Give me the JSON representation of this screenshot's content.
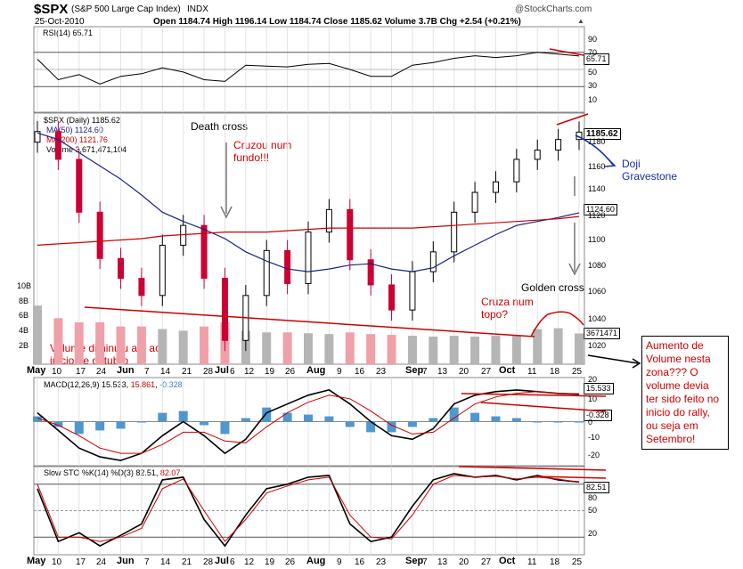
{
  "header": {
    "symbol": "$SPX",
    "name": "(S&P 500 Large Cap Index)",
    "exchange": "INDX",
    "date": "25-Oct-2010",
    "stats": "Open 1184.74  High 1196.14  Low 1184.74  Close 1185.62  Volume 3.7B  Chg +2.54 (+0.21%)",
    "stats_arrow": "▲",
    "logo": "@StockCharts.com"
  },
  "rsi": {
    "label": "RSI(14) 65.71",
    "last_badge": "65.71",
    "ticks": [
      "90",
      "70",
      "50",
      "30",
      "10"
    ]
  },
  "price": {
    "legend": {
      "main": "$SPX (Daily) 1185.62",
      "ma50": "MA(50) 1124.60",
      "ma200": "MA(200) 1121.76",
      "volume": "Volume 3,671,471,104"
    },
    "price_badge": "1185.62",
    "ma_badge": "1124.60",
    "vol_badge": "3671471",
    "ticks": [
      "1180",
      "1160",
      "1140",
      "1120",
      "1100",
      "1080",
      "1060",
      "1040",
      "1020"
    ],
    "vol_ticks": [
      "10B",
      "8B",
      "6B",
      "4B",
      "2B"
    ]
  },
  "macd": {
    "label_prefix": "MACD(12,26,9)",
    "v1": "15.533",
    "v2": "15.861",
    "v3": "-0.328",
    "badge1": "15.533",
    "badge2": "-0.328",
    "ticks": [
      "20",
      "10",
      "0",
      "-10",
      "-20"
    ]
  },
  "sto": {
    "label_prefix": "Slow STO %K(14) %D(3)",
    "k": "82.51",
    "d": "82.07",
    "badge": "82.51",
    "ticks": [
      "80",
      "50",
      "20"
    ]
  },
  "x_axis": [
    "May",
    "10",
    "17",
    "24",
    "Jun",
    "7",
    "14",
    "21",
    "28",
    "Jul",
    "6",
    "12",
    "19",
    "26",
    "Aug",
    "9",
    "16",
    "23",
    "Sep",
    "7",
    "13",
    "20",
    "27",
    "Oct",
    "11",
    "18",
    "25"
  ],
  "annotations": {
    "death_cross": "Death cross",
    "cruzou": "Cruzou num fundo!!!",
    "doji": "Doji Gravestone",
    "golden_cross": "Golden cross",
    "cruza": "Cruza num topo?",
    "volume_note": "Volume diminuiu até ao inicio de outubro",
    "right_box": "Aumento de Volume nesta zona??? O volume devia ter sido feito no inicio do rally, ou seja em Setembro!"
  },
  "colors": {
    "ma50": "#1a237e",
    "ma200": "#cc0000",
    "up_candle": "#000000",
    "down_candle": "#cc0033",
    "vol_up": "#b5b5b5",
    "vol_down": "#f0a0a8",
    "macd_hist": "#4f97cf",
    "annot_red": "#cc0000",
    "annot_blue": "#1a2f9c"
  },
  "chart_data": [
    {
      "type": "line",
      "title": "RSI(14) 65.71",
      "x": [
        "May",
        "10",
        "17",
        "24",
        "Jun",
        "7",
        "14",
        "21",
        "28",
        "Jul",
        "6",
        "12",
        "19",
        "26",
        "Aug",
        "9",
        "16",
        "23",
        "Sep",
        "7",
        "13",
        "20",
        "27",
        "Oct",
        "11",
        "18",
        "25"
      ],
      "series": [
        {
          "name": "RSI(14)",
          "values": [
            62,
            38,
            44,
            33,
            42,
            45,
            52,
            47,
            38,
            36,
            55,
            54,
            53,
            56,
            57,
            50,
            42,
            42,
            55,
            58,
            63,
            66,
            64,
            66,
            70,
            68,
            65.71
          ]
        }
      ],
      "ylim": [
        0,
        100
      ]
    },
    {
      "type": "line",
      "title": "$SPX (Daily) 1185.62",
      "x": [
        "May",
        "10",
        "17",
        "24",
        "Jun",
        "7",
        "14",
        "21",
        "28",
        "Jul",
        "6",
        "12",
        "19",
        "26",
        "Aug",
        "9",
        "16",
        "23",
        "Sep",
        "7",
        "13",
        "20",
        "27",
        "Oct",
        "11",
        "18",
        "25"
      ],
      "series": [
        {
          "name": "$SPX (Daily)",
          "values": [
            1186,
            1165,
            1125,
            1090,
            1075,
            1062,
            1100,
            1115,
            1075,
            1028,
            1062,
            1096,
            1071,
            1110,
            1127,
            1089,
            1070,
            1051,
            1080,
            1095,
            1125,
            1140,
            1148,
            1165,
            1172,
            1180,
            1185.62
          ]
        },
        {
          "name": "MA(50)",
          "values": [
            1185,
            1180,
            1170,
            1160,
            1150,
            1138,
            1125,
            1118,
            1112,
            1105,
            1095,
            1088,
            1082,
            1080,
            1082,
            1085,
            1086,
            1082,
            1080,
            1083,
            1092,
            1100,
            1108,
            1115,
            1118,
            1121,
            1124.6
          ]
        },
        {
          "name": "MA(200)",
          "values": [
            1100,
            1101,
            1102,
            1103,
            1104,
            1105,
            1107,
            1108,
            1109,
            1110,
            1110,
            1110,
            1111,
            1112,
            1113,
            1113,
            1113,
            1113,
            1113,
            1114,
            1115,
            1116,
            1117,
            1118,
            1119,
            1120,
            1121.76
          ]
        }
      ],
      "ylim": [
        1010,
        1200
      ]
    },
    {
      "type": "bar",
      "title": "Volume 3,671,471,104",
      "categories": [
        "May",
        "10",
        "17",
        "24",
        "Jun",
        "7",
        "14",
        "21",
        "28",
        "Jul",
        "6",
        "12",
        "19",
        "26",
        "Aug",
        "9",
        "16",
        "23",
        "Sep",
        "7",
        "13",
        "20",
        "27",
        "Oct",
        "11",
        "18",
        "25"
      ],
      "values": [
        7,
        5.5,
        5,
        5,
        4.5,
        4.5,
        4.2,
        4,
        4.5,
        5,
        4,
        3.8,
        3.8,
        3.7,
        3.6,
        3.8,
        3.6,
        3.5,
        3.4,
        3.3,
        3.4,
        3.3,
        3.4,
        3.4,
        4.2,
        4.3,
        3.67
      ],
      "ylim": [
        0,
        10
      ]
    },
    {
      "type": "line",
      "title": "MACD(12,26,9) 15.533, 15.861, -0.328",
      "x": [
        "May",
        "10",
        "17",
        "24",
        "Jun",
        "7",
        "14",
        "21",
        "28",
        "Jul",
        "6",
        "12",
        "19",
        "26",
        "Aug",
        "9",
        "16",
        "23",
        "Sep",
        "7",
        "13",
        "20",
        "27",
        "Oct",
        "11",
        "18",
        "25"
      ],
      "series": [
        {
          "name": "MACD",
          "values": [
            5,
            -5,
            -15,
            -20,
            -22,
            -18,
            -8,
            0,
            -8,
            -18,
            -10,
            5,
            10,
            15,
            18,
            10,
            0,
            -8,
            -10,
            -4,
            10,
            15,
            17,
            18,
            17,
            16,
            15.533
          ]
        },
        {
          "name": "Signal",
          "values": [
            2,
            -2,
            -8,
            -15,
            -18,
            -18,
            -13,
            -6,
            -6,
            -11,
            -12,
            -3,
            5,
            11,
            15,
            13,
            6,
            -2,
            -7,
            -6,
            2,
            10,
            14,
            16,
            17,
            16,
            15.861
          ]
        },
        {
          "name": "Histogram",
          "values": [
            3,
            -3,
            -7,
            -5,
            -4,
            0,
            5,
            6,
            -2,
            -7,
            2,
            8,
            5,
            4,
            3,
            -3,
            -6,
            -6,
            -3,
            2,
            8,
            5,
            3,
            2,
            0,
            0,
            -0.328
          ]
        }
      ],
      "ylim": [
        -25,
        25
      ]
    },
    {
      "type": "line",
      "title": "Slow STO %K(14) %D(3) 82.51, 82.07",
      "x": [
        "May",
        "10",
        "17",
        "24",
        "Jun",
        "7",
        "14",
        "21",
        "28",
        "Jul",
        "6",
        "12",
        "19",
        "26",
        "Aug",
        "9",
        "16",
        "23",
        "Sep",
        "7",
        "13",
        "20",
        "27",
        "Oct",
        "11",
        "18",
        "25"
      ],
      "series": [
        {
          "name": "%K(14)",
          "values": [
            75,
            15,
            25,
            10,
            22,
            35,
            85,
            88,
            40,
            10,
            45,
            75,
            80,
            88,
            90,
            35,
            15,
            20,
            55,
            85,
            92,
            88,
            90,
            85,
            90,
            85,
            82.51
          ]
        },
        {
          "name": "%D(3)",
          "values": [
            80,
            20,
            20,
            15,
            20,
            30,
            75,
            86,
            50,
            15,
            40,
            70,
            78,
            85,
            88,
            45,
            20,
            18,
            45,
            80,
            90,
            88,
            89,
            86,
            88,
            86,
            82.07
          ]
        }
      ],
      "ylim": [
        0,
        100
      ]
    }
  ]
}
